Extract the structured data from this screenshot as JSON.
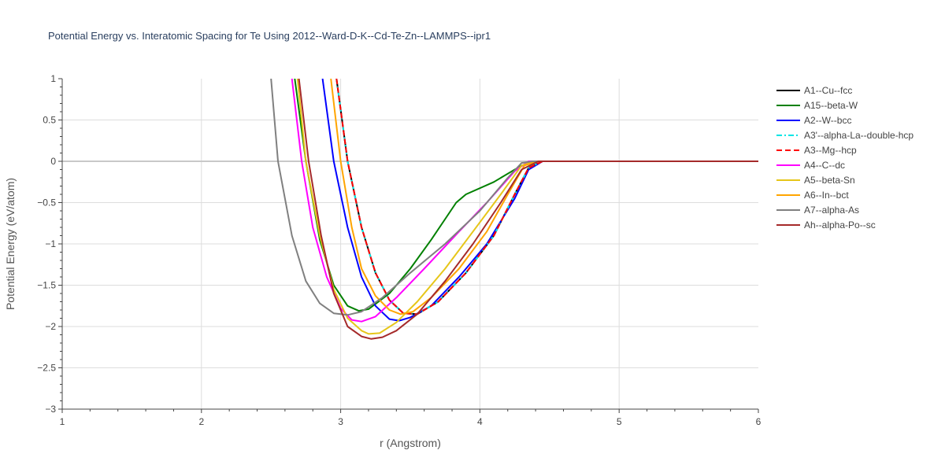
{
  "chart_data": {
    "type": "line",
    "title": "Potential Energy vs. Interatomic Spacing for Te Using 2012--Ward-D-K--Cd-Te-Zn--LAMMPS--ipr1",
    "xlabel": "r (Angstrom)",
    "ylabel": "Potential Energy (eV/atom)",
    "xlim": [
      1,
      6
    ],
    "ylim": [
      -3,
      1
    ],
    "x_ticks": [
      "1",
      "2",
      "3",
      "4",
      "5",
      "6"
    ],
    "y_ticks": [
      "1",
      "0.5",
      "0",
      "−0.5",
      "−1",
      "−1.5",
      "−2",
      "−2.5",
      "−3"
    ],
    "grid": true,
    "legend_position": "top-right",
    "series": [
      {
        "name": "A1--Cu--fcc",
        "color": "#000000",
        "dash": "solid",
        "points": [
          [
            2.97,
            1.0
          ],
          [
            3.05,
            0.0
          ],
          [
            3.15,
            -0.8
          ],
          [
            3.25,
            -1.35
          ],
          [
            3.35,
            -1.68
          ],
          [
            3.45,
            -1.84
          ],
          [
            3.55,
            -1.85
          ],
          [
            3.7,
            -1.7
          ],
          [
            3.9,
            -1.35
          ],
          [
            4.1,
            -0.9
          ],
          [
            4.25,
            -0.4
          ],
          [
            4.35,
            -0.08
          ],
          [
            4.45,
            0.0
          ],
          [
            6.0,
            0.0
          ]
        ]
      },
      {
        "name": "A15--beta-W",
        "color": "#008000",
        "dash": "solid",
        "points": [
          [
            2.67,
            1.0
          ],
          [
            2.75,
            0.0
          ],
          [
            2.85,
            -0.95
          ],
          [
            2.95,
            -1.5
          ],
          [
            3.05,
            -1.75
          ],
          [
            3.13,
            -1.81
          ],
          [
            3.2,
            -1.79
          ],
          [
            3.35,
            -1.6
          ],
          [
            3.5,
            -1.3
          ],
          [
            3.65,
            -0.95
          ],
          [
            3.75,
            -0.7
          ],
          [
            3.83,
            -0.5
          ],
          [
            3.9,
            -0.4
          ],
          [
            4.1,
            -0.25
          ],
          [
            4.3,
            -0.05
          ],
          [
            4.4,
            0.0
          ],
          [
            6.0,
            0.0
          ]
        ]
      },
      {
        "name": "A2--W--bcc",
        "color": "#0000ff",
        "dash": "solid",
        "points": [
          [
            2.87,
            1.0
          ],
          [
            2.95,
            0.0
          ],
          [
            3.05,
            -0.8
          ],
          [
            3.15,
            -1.4
          ],
          [
            3.25,
            -1.75
          ],
          [
            3.35,
            -1.91
          ],
          [
            3.42,
            -1.93
          ],
          [
            3.5,
            -1.89
          ],
          [
            3.65,
            -1.75
          ],
          [
            3.85,
            -1.4
          ],
          [
            4.05,
            -1.0
          ],
          [
            4.25,
            -0.45
          ],
          [
            4.35,
            -0.1
          ],
          [
            4.45,
            0.0
          ],
          [
            6.0,
            0.0
          ]
        ]
      },
      {
        "name": "A3'--alpha-La--double-hcp",
        "color": "#00e5e5",
        "dash": "dashdot",
        "points": [
          [
            2.97,
            1.0
          ],
          [
            3.05,
            0.0
          ],
          [
            3.15,
            -0.8
          ],
          [
            3.25,
            -1.35
          ],
          [
            3.35,
            -1.68
          ],
          [
            3.45,
            -1.84
          ],
          [
            3.55,
            -1.85
          ],
          [
            3.7,
            -1.7
          ],
          [
            3.9,
            -1.35
          ],
          [
            4.1,
            -0.9
          ],
          [
            4.25,
            -0.4
          ],
          [
            4.35,
            -0.08
          ],
          [
            4.45,
            0.0
          ],
          [
            6.0,
            0.0
          ]
        ]
      },
      {
        "name": "A3--Mg--hcp",
        "color": "#ff0000",
        "dash": "dash",
        "points": [
          [
            2.97,
            1.0
          ],
          [
            3.05,
            0.0
          ],
          [
            3.15,
            -0.8
          ],
          [
            3.25,
            -1.35
          ],
          [
            3.35,
            -1.68
          ],
          [
            3.45,
            -1.84
          ],
          [
            3.55,
            -1.85
          ],
          [
            3.7,
            -1.7
          ],
          [
            3.9,
            -1.35
          ],
          [
            4.1,
            -0.9
          ],
          [
            4.25,
            -0.4
          ],
          [
            4.35,
            -0.08
          ],
          [
            4.45,
            0.0
          ],
          [
            6.0,
            0.0
          ]
        ]
      },
      {
        "name": "A4--C--dc",
        "color": "#ff00ff",
        "dash": "solid",
        "points": [
          [
            2.65,
            1.0
          ],
          [
            2.72,
            0.0
          ],
          [
            2.8,
            -0.8
          ],
          [
            2.9,
            -1.4
          ],
          [
            3.0,
            -1.78
          ],
          [
            3.08,
            -1.92
          ],
          [
            3.15,
            -1.94
          ],
          [
            3.25,
            -1.88
          ],
          [
            3.4,
            -1.65
          ],
          [
            3.6,
            -1.3
          ],
          [
            3.85,
            -0.85
          ],
          [
            4.05,
            -0.5
          ],
          [
            4.25,
            -0.12
          ],
          [
            4.35,
            0.0
          ],
          [
            6.0,
            0.0
          ]
        ]
      },
      {
        "name": "A5--beta-Sn",
        "color": "#e6c619",
        "dash": "solid",
        "points": [
          [
            2.69,
            1.0
          ],
          [
            2.75,
            0.0
          ],
          [
            2.85,
            -0.9
          ],
          [
            2.95,
            -1.55
          ],
          [
            3.05,
            -1.9
          ],
          [
            3.15,
            -2.05
          ],
          [
            3.2,
            -2.09
          ],
          [
            3.28,
            -2.08
          ],
          [
            3.4,
            -1.95
          ],
          [
            3.55,
            -1.7
          ],
          [
            3.75,
            -1.3
          ],
          [
            3.95,
            -0.85
          ],
          [
            4.15,
            -0.4
          ],
          [
            4.3,
            -0.05
          ],
          [
            4.4,
            0.0
          ],
          [
            6.0,
            0.0
          ]
        ]
      },
      {
        "name": "A6--In--bct",
        "color": "#ffa500",
        "dash": "solid",
        "points": [
          [
            2.93,
            1.0
          ],
          [
            3.0,
            0.0
          ],
          [
            3.08,
            -0.8
          ],
          [
            3.15,
            -1.3
          ],
          [
            3.25,
            -1.63
          ],
          [
            3.35,
            -1.8
          ],
          [
            3.43,
            -1.85
          ],
          [
            3.52,
            -1.82
          ],
          [
            3.65,
            -1.65
          ],
          [
            3.85,
            -1.3
          ],
          [
            4.05,
            -0.85
          ],
          [
            4.2,
            -0.4
          ],
          [
            4.32,
            -0.05
          ],
          [
            4.42,
            0.0
          ],
          [
            6.0,
            0.0
          ]
        ]
      },
      {
        "name": "A7--alpha-As",
        "color": "#808080",
        "dash": "solid",
        "points": [
          [
            2.5,
            1.0
          ],
          [
            2.55,
            0.0
          ],
          [
            2.65,
            -0.9
          ],
          [
            2.75,
            -1.45
          ],
          [
            2.85,
            -1.72
          ],
          [
            2.95,
            -1.84
          ],
          [
            3.05,
            -1.86
          ],
          [
            3.15,
            -1.82
          ],
          [
            3.3,
            -1.65
          ],
          [
            3.5,
            -1.35
          ],
          [
            3.75,
            -1.0
          ],
          [
            4.0,
            -0.6
          ],
          [
            4.2,
            -0.2
          ],
          [
            4.3,
            -0.02
          ],
          [
            4.38,
            0.0
          ],
          [
            6.0,
            0.0
          ]
        ]
      },
      {
        "name": "Ah--alpha-Po--sc",
        "color": "#a52a2a",
        "dash": "solid",
        "points": [
          [
            2.7,
            1.0
          ],
          [
            2.77,
            0.0
          ],
          [
            2.86,
            -0.9
          ],
          [
            2.95,
            -1.6
          ],
          [
            3.05,
            -2.0
          ],
          [
            3.15,
            -2.12
          ],
          [
            3.22,
            -2.15
          ],
          [
            3.3,
            -2.13
          ],
          [
            3.4,
            -2.05
          ],
          [
            3.55,
            -1.85
          ],
          [
            3.75,
            -1.45
          ],
          [
            3.95,
            -1.0
          ],
          [
            4.15,
            -0.5
          ],
          [
            4.3,
            -0.1
          ],
          [
            4.42,
            0.0
          ],
          [
            6.0,
            0.0
          ]
        ]
      }
    ]
  }
}
